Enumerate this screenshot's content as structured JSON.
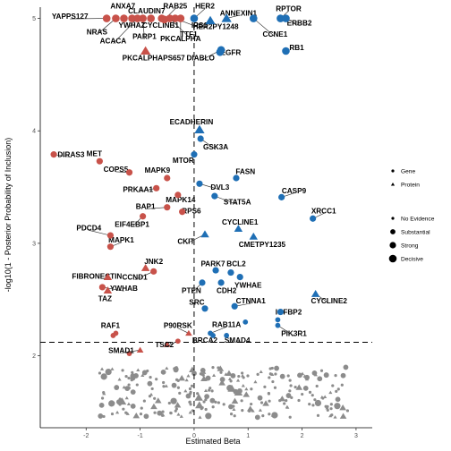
{
  "chart_data": {
    "type": "scatter",
    "xlabel": "Estimated Beta",
    "ylabel": "-log10(1 - Posterior Probability of Inclusion)",
    "xlim": [
      -2.85,
      3.3
    ],
    "ylim": [
      1.36,
      5.1
    ],
    "x_ticks": [
      -2,
      -1,
      0,
      1,
      2,
      3
    ],
    "y_ticks": [
      2,
      3,
      4,
      5
    ],
    "reference_lines": {
      "vertical_x": 0,
      "horizontal_y": 2.12
    },
    "grid": false,
    "colors": {
      "negative": "#c8524a",
      "positive": "#1f6fb5",
      "not_significant": "#8c8c8c"
    },
    "legend_shape": {
      "entries": [
        {
          "label": "Gene",
          "shape": "circle"
        },
        {
          "label": "Protein",
          "shape": "triangle"
        }
      ]
    },
    "legend_size": {
      "entries": [
        {
          "label": "No Evidence",
          "size": 1
        },
        {
          "label": "Substantial",
          "size": 2
        },
        {
          "label": "Strong",
          "size": 3
        },
        {
          "label": "Decisive",
          "size": 4
        }
      ]
    },
    "points": [
      {
        "label": "YAPPS127",
        "x": -1.62,
        "y": 5.0,
        "shape": "circle",
        "size": 4,
        "lx": -2.3,
        "ly": 5.02
      },
      {
        "label": "ANXA7",
        "x": -1.3,
        "y": 5.0,
        "shape": "circle",
        "size": 4,
        "lx": -1.32,
        "ly": 5.11
      },
      {
        "label": "CLAUDIN7",
        "x": -0.8,
        "y": 5.0,
        "shape": "circle",
        "size": 4,
        "lx": -0.88,
        "ly": 5.07
      },
      {
        "label": "RAB25",
        "x": -0.55,
        "y": 4.99,
        "shape": "circle",
        "size": 4,
        "lx": -0.35,
        "ly": 5.11
      },
      {
        "label": "HER2",
        "x": 0.0,
        "y": 5.0,
        "shape": "circle",
        "size": 4,
        "lx": 0.2,
        "ly": 5.11
      },
      {
        "label": "NRAS",
        "x": -1.45,
        "y": 5.0,
        "shape": "circle",
        "size": 4,
        "lx": -1.8,
        "ly": 4.88
      },
      {
        "label": "YWHAZ",
        "x": -1.15,
        "y": 5.0,
        "shape": "circle",
        "size": 4,
        "lx": -1.15,
        "ly": 4.94
      },
      {
        "label": "CYCLINB1",
        "x": -0.6,
        "y": 5.0,
        "shape": "circle",
        "size": 4,
        "lx": -0.62,
        "ly": 4.94
      },
      {
        "label": "IRS1",
        "x": -0.35,
        "y": 5.0,
        "shape": "circle",
        "size": 4,
        "lx": 0.1,
        "ly": 4.94
      },
      {
        "label": "ACACA",
        "x": -1.05,
        "y": 5.0,
        "shape": "circle",
        "size": 4,
        "lx": -1.5,
        "ly": 4.8
      },
      {
        "label": "PARP1",
        "x": -0.95,
        "y": 5.0,
        "shape": "circle",
        "size": 4,
        "lx": -0.92,
        "ly": 4.84
      },
      {
        "label": "PKCALPHA",
        "x": -0.25,
        "y": 5.0,
        "shape": "circle",
        "size": 4,
        "lx": -0.25,
        "ly": 4.82
      },
      {
        "label": "TTF1",
        "x": -0.45,
        "y": 5.0,
        "shape": "circle",
        "size": 4,
        "lx": -0.1,
        "ly": 4.86
      },
      {
        "label": "PKCALPHAPS657",
        "x": -0.9,
        "y": 4.71,
        "shape": "triangle",
        "size": 4,
        "lx": -0.75,
        "ly": 4.65
      },
      {
        "label": "ANNEXIN1",
        "x": 0.6,
        "y": 5.0,
        "shape": "triangle",
        "size": 4,
        "lx": 0.82,
        "ly": 5.05
      },
      {
        "label": "HER2PY1248",
        "x": 0.3,
        "y": 4.98,
        "shape": "triangle",
        "size": 4,
        "lx": 0.4,
        "ly": 4.93
      },
      {
        "label": "RPTOR",
        "x": 1.6,
        "y": 5.0,
        "shape": "circle",
        "size": 4,
        "lx": 1.75,
        "ly": 5.09
      },
      {
        "label": "ERBB2",
        "x": 1.7,
        "y": 5.0,
        "shape": "circle",
        "size": 4,
        "lx": 1.95,
        "ly": 4.96
      },
      {
        "label": "CCNE1",
        "x": 1.1,
        "y": 5.0,
        "shape": "circle",
        "size": 4,
        "lx": 1.5,
        "ly": 4.86
      },
      {
        "label": "RB1",
        "x": 1.7,
        "y": 4.71,
        "shape": "circle",
        "size": 4,
        "lx": 1.9,
        "ly": 4.74
      },
      {
        "label": "DIABLO",
        "x": 0.5,
        "y": 4.72,
        "shape": "circle",
        "size": 4,
        "lx": 0.12,
        "ly": 4.65
      },
      {
        "label": "EGFR",
        "x": 0.48,
        "y": 4.7,
        "shape": "circle",
        "size": 4,
        "lx": 0.68,
        "ly": 4.7
      },
      {
        "label": "ECADHERIN",
        "x": 0.1,
        "y": 4.01,
        "shape": "triangle",
        "size": 4,
        "lx": -0.05,
        "ly": 4.08
      },
      {
        "label": "GSK3A",
        "x": 0.12,
        "y": 3.93,
        "shape": "circle",
        "size": 3,
        "lx": 0.4,
        "ly": 3.86
      },
      {
        "label": "DIRAS3",
        "x": -2.6,
        "y": 3.79,
        "shape": "circle",
        "size": 3,
        "lx": -2.28,
        "ly": 3.79
      },
      {
        "label": "MET",
        "x": -1.75,
        "y": 3.73,
        "shape": "circle",
        "size": 3,
        "lx": -1.85,
        "ly": 3.8
      },
      {
        "label": "MTOR",
        "x": 0.0,
        "y": 3.79,
        "shape": "circle",
        "size": 3,
        "lx": -0.2,
        "ly": 3.74
      },
      {
        "label": "COPS5",
        "x": -1.2,
        "y": 3.63,
        "shape": "circle",
        "size": 3,
        "lx": -1.45,
        "ly": 3.66
      },
      {
        "label": "MAPK9",
        "x": -0.5,
        "y": 3.58,
        "shape": "circle",
        "size": 3,
        "lx": -0.68,
        "ly": 3.65
      },
      {
        "label": "FASN",
        "x": 0.78,
        "y": 3.58,
        "shape": "circle",
        "size": 3,
        "lx": 0.95,
        "ly": 3.64
      },
      {
        "label": "DVL3",
        "x": 0.1,
        "y": 3.53,
        "shape": "circle",
        "size": 3,
        "lx": 0.48,
        "ly": 3.5
      },
      {
        "label": "PRKAA1",
        "x": -0.7,
        "y": 3.49,
        "shape": "circle",
        "size": 3,
        "lx": -1.04,
        "ly": 3.48
      },
      {
        "label": "MAPK14",
        "x": -0.3,
        "y": 3.43,
        "shape": "circle",
        "size": 3,
        "lx": -0.25,
        "ly": 3.39
      },
      {
        "label": "STAT5A",
        "x": 0.38,
        "y": 3.42,
        "shape": "circle",
        "size": 3,
        "lx": 0.8,
        "ly": 3.37
      },
      {
        "label": "CASP9",
        "x": 1.62,
        "y": 3.41,
        "shape": "circle",
        "size": 3,
        "lx": 1.85,
        "ly": 3.47
      },
      {
        "label": "BAP1",
        "x": -0.5,
        "y": 3.32,
        "shape": "circle",
        "size": 3,
        "lx": -0.9,
        "ly": 3.33
      },
      {
        "label": "RPS6",
        "x": -0.22,
        "y": 3.28,
        "shape": "circle",
        "size": 3,
        "lx": -0.05,
        "ly": 3.29
      },
      {
        "label": "EIF4EBP1",
        "x": -0.95,
        "y": 3.24,
        "shape": "circle",
        "size": 3,
        "lx": -1.15,
        "ly": 3.17
      },
      {
        "label": "XRCC1",
        "x": 2.2,
        "y": 3.22,
        "shape": "circle",
        "size": 3,
        "lx": 2.4,
        "ly": 3.29
      },
      {
        "label": "CYCLINE1",
        "x": 0.82,
        "y": 3.13,
        "shape": "triangle",
        "size": 3,
        "lx": 0.85,
        "ly": 3.19
      },
      {
        "label": "PDCD4",
        "x": -1.55,
        "y": 3.07,
        "shape": "circle",
        "size": 3,
        "lx": -1.95,
        "ly": 3.14
      },
      {
        "label": "CKIT",
        "x": 0.2,
        "y": 3.08,
        "shape": "triangle",
        "size": 3,
        "lx": -0.15,
        "ly": 3.02
      },
      {
        "label": "CMETPY1235",
        "x": 1.1,
        "y": 3.06,
        "shape": "triangle",
        "size": 3,
        "lx": 1.26,
        "ly": 2.99
      },
      {
        "label": "MAPK1",
        "x": -1.55,
        "y": 2.97,
        "shape": "circle",
        "size": 3,
        "lx": -1.35,
        "ly": 3.03
      },
      {
        "label": "JNK2",
        "x": -0.9,
        "y": 2.78,
        "shape": "triangle",
        "size": 3,
        "lx": -0.75,
        "ly": 2.84
      },
      {
        "label": "PARK7",
        "x": 0.4,
        "y": 2.76,
        "shape": "circle",
        "size": 3,
        "lx": 0.35,
        "ly": 2.82
      },
      {
        "label": "BCL2",
        "x": 0.68,
        "y": 2.74,
        "shape": "circle",
        "size": 3,
        "lx": 0.78,
        "ly": 2.82
      },
      {
        "label": "CCND1",
        "x": -0.75,
        "y": 2.75,
        "shape": "circle",
        "size": 3,
        "lx": -1.1,
        "ly": 2.7
      },
      {
        "label": "FIBRONECTIN",
        "x": -1.6,
        "y": 2.7,
        "shape": "triangle",
        "size": 3,
        "lx": -1.8,
        "ly": 2.71
      },
      {
        "label": "YWHAE",
        "x": 0.85,
        "y": 2.7,
        "shape": "circle",
        "size": 3,
        "lx": 1.0,
        "ly": 2.63
      },
      {
        "label": "PTEN",
        "x": 0.15,
        "y": 2.65,
        "shape": "circle",
        "size": 3,
        "lx": -0.05,
        "ly": 2.58
      },
      {
        "label": "CDH2",
        "x": 0.5,
        "y": 2.65,
        "shape": "circle",
        "size": 3,
        "lx": 0.6,
        "ly": 2.58
      },
      {
        "label": "YWHAB",
        "x": -1.7,
        "y": 2.61,
        "shape": "circle",
        "size": 3,
        "lx": -1.3,
        "ly": 2.6
      },
      {
        "label": "TAZ",
        "x": -1.6,
        "y": 2.58,
        "shape": "triangle",
        "size": 3,
        "lx": -1.65,
        "ly": 2.51
      },
      {
        "label": "CYCLINE2",
        "x": 2.25,
        "y": 2.55,
        "shape": "triangle",
        "size": 3,
        "lx": 2.5,
        "ly": 2.49
      },
      {
        "label": "CTNNA1",
        "x": 0.75,
        "y": 2.44,
        "shape": "circle",
        "size": 3,
        "lx": 1.05,
        "ly": 2.49
      },
      {
        "label": "SRC",
        "x": 0.2,
        "y": 2.42,
        "shape": "circle",
        "size": 3,
        "lx": 0.05,
        "ly": 2.48
      },
      {
        "label": "IGFBP2",
        "x": 1.6,
        "y": 2.39,
        "shape": "circle",
        "size": 3,
        "lx": 1.75,
        "ly": 2.39
      },
      {
        "label": "RAF1",
        "x": -1.45,
        "y": 2.2,
        "shape": "circle",
        "size": 2,
        "lx": -1.55,
        "ly": 2.27
      },
      {
        "label": "P90RSK",
        "x": -0.1,
        "y": 2.2,
        "shape": "triangle",
        "size": 2,
        "lx": -0.3,
        "ly": 2.27
      },
      {
        "label": "RAB11A",
        "x": 0.3,
        "y": 2.2,
        "shape": "circle",
        "size": 2,
        "lx": 0.6,
        "ly": 2.28
      },
      {
        "label": "PIK3R1",
        "x": 1.55,
        "y": 2.27,
        "shape": "circle",
        "size": 2,
        "lx": 1.85,
        "ly": 2.2
      },
      {
        "label": "BRCA2",
        "x": 0.35,
        "y": 2.18,
        "shape": "circle",
        "size": 2,
        "lx": 0.2,
        "ly": 2.14
      },
      {
        "label": "SMAD4",
        "x": 0.6,
        "y": 2.18,
        "shape": "circle",
        "size": 2,
        "lx": 0.8,
        "ly": 2.14
      },
      {
        "label": "TSC2",
        "x": -0.3,
        "y": 2.13,
        "shape": "circle",
        "size": 2,
        "lx": -0.55,
        "ly": 2.1
      },
      {
        "label": "SMAD1",
        "x": -1.0,
        "y": 2.05,
        "shape": "triangle",
        "size": 2,
        "lx": -1.35,
        "ly": 2.05
      }
    ],
    "unlabeled_points": [
      {
        "x": -1.5,
        "y": 2.18,
        "shape": "circle",
        "size": 2
      },
      {
        "x": -0.5,
        "y": 2.1,
        "shape": "triangle",
        "size": 2
      },
      {
        "x": 0.95,
        "y": 2.3,
        "shape": "circle",
        "size": 2
      },
      {
        "x": 1.55,
        "y": 2.32,
        "shape": "circle",
        "size": 2
      },
      {
        "x": -1.2,
        "y": 2.02,
        "shape": "circle",
        "size": 2
      }
    ]
  }
}
